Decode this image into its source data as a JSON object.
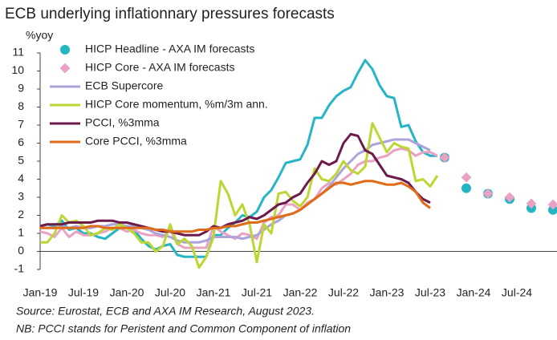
{
  "chart_data": {
    "type": "line",
    "title": "ECB underlying inflationnary pressures forecasts",
    "y_label": "%yoy",
    "notes": [
      "Source: Eurostat, ECB and AXA IM Research, August 2023.",
      "NB: PCCI stands for Peristent and Common Component of inflation"
    ],
    "categories": [
      "Jan-19",
      null,
      null,
      null,
      null,
      null,
      "Jul-19",
      null,
      null,
      null,
      null,
      null,
      "Jan-20",
      null,
      null,
      null,
      null,
      null,
      "Jul-20",
      null,
      null,
      null,
      null,
      null,
      "Jan-21",
      null,
      null,
      null,
      null,
      null,
      "Jul-21",
      null,
      null,
      null,
      null,
      null,
      "Jan-22",
      null,
      null,
      null,
      null,
      null,
      "Jul-22",
      null,
      null,
      null,
      null,
      null,
      "Jan-23",
      null,
      null,
      null,
      null,
      null,
      "Jul-23",
      null,
      null,
      null,
      null,
      null,
      "Jan-24",
      null,
      null,
      null,
      null,
      null,
      "Jul-24",
      null,
      null,
      null,
      null,
      null
    ],
    "ylim": [
      -1,
      11
    ],
    "yticks": [
      -1,
      0,
      1,
      2,
      3,
      4,
      5,
      6,
      7,
      8,
      9,
      10,
      11
    ],
    "grid": false,
    "series": [
      {
        "name": "HICP Headline - AXA IM forecasts",
        "color": "#26b5c5",
        "marker": "circle",
        "values": [
          1.4,
          1.5,
          1.4,
          1.7,
          1.2,
          1.3,
          1.0,
          1.0,
          0.8,
          0.7,
          1.0,
          1.3,
          1.4,
          1.2,
          0.7,
          0.3,
          0.1,
          0.3,
          0.4,
          -0.2,
          -0.3,
          -0.3,
          -0.3,
          -0.3,
          0.9,
          0.9,
          1.3,
          1.6,
          2.0,
          1.9,
          2.2,
          3.0,
          3.4,
          4.1,
          4.9,
          5.0,
          5.1,
          5.9,
          7.4,
          7.4,
          8.1,
          8.6,
          8.9,
          9.1,
          9.9,
          10.6,
          10.1,
          9.2,
          8.6,
          8.5,
          6.9,
          7.0,
          6.1,
          5.5,
          5.3,
          5.3,
          null,
          null,
          null,
          null,
          null,
          null,
          null,
          null,
          null,
          null,
          null,
          null,
          null,
          null,
          null,
          null
        ],
        "forecast": [
          null,
          null,
          null,
          null,
          null,
          null,
          null,
          null,
          null,
          null,
          null,
          null,
          null,
          null,
          null,
          null,
          null,
          null,
          null,
          null,
          null,
          null,
          null,
          null,
          null,
          null,
          null,
          null,
          null,
          null,
          null,
          null,
          null,
          null,
          null,
          null,
          null,
          null,
          null,
          null,
          null,
          null,
          null,
          null,
          null,
          null,
          null,
          null,
          null,
          null,
          null,
          null,
          null,
          null,
          null,
          null,
          5.2,
          null,
          null,
          3.5,
          null,
          null,
          3.2,
          null,
          null,
          2.9,
          null,
          null,
          2.4,
          null,
          null,
          2.3
        ]
      },
      {
        "name": "HICP Core - AXA IM forecasts",
        "color": "#e9a2c4",
        "marker": "diamond",
        "values": [
          1.1,
          1.0,
          0.8,
          1.3,
          0.8,
          1.1,
          0.9,
          0.9,
          1.0,
          1.1,
          1.3,
          1.3,
          1.1,
          1.2,
          1.0,
          0.9,
          0.9,
          0.8,
          1.2,
          0.4,
          0.2,
          0.2,
          0.2,
          0.2,
          1.4,
          1.1,
          0.9,
          0.7,
          1.0,
          0.9,
          0.7,
          1.6,
          1.9,
          2.0,
          2.6,
          2.6,
          2.3,
          2.7,
          2.9,
          3.5,
          3.8,
          3.7,
          4.0,
          4.3,
          4.8,
          5.0,
          5.0,
          5.2,
          5.3,
          5.6,
          5.7,
          5.6,
          5.3,
          5.5,
          5.5,
          5.3,
          null,
          null,
          null,
          null,
          null,
          null,
          null,
          null,
          null,
          null,
          null,
          null,
          null,
          null,
          null,
          null
        ],
        "forecast": [
          null,
          null,
          null,
          null,
          null,
          null,
          null,
          null,
          null,
          null,
          null,
          null,
          null,
          null,
          null,
          null,
          null,
          null,
          null,
          null,
          null,
          null,
          null,
          null,
          null,
          null,
          null,
          null,
          null,
          null,
          null,
          null,
          null,
          null,
          null,
          null,
          null,
          null,
          null,
          null,
          null,
          null,
          null,
          null,
          null,
          null,
          null,
          null,
          null,
          null,
          null,
          null,
          null,
          null,
          null,
          null,
          5.2,
          null,
          null,
          4.1,
          null,
          null,
          3.2,
          null,
          null,
          3.0,
          null,
          null,
          2.65,
          null,
          null,
          2.6
        ]
      },
      {
        "name": "ECB Supercore",
        "color": "#aaa4da",
        "values": [
          1.3,
          1.3,
          1.3,
          1.4,
          1.3,
          1.4,
          1.3,
          1.3,
          1.4,
          1.4,
          1.5,
          1.5,
          1.4,
          1.4,
          1.3,
          1.2,
          1.0,
          0.9,
          0.8,
          0.6,
          0.5,
          0.5,
          0.5,
          0.6,
          0.8,
          0.8,
          0.8,
          0.8,
          0.7,
          0.8,
          0.9,
          1.2,
          1.5,
          1.7,
          2.0,
          2.1,
          2.3,
          2.6,
          2.9,
          3.2,
          3.6,
          4.1,
          4.6,
          5.0,
          5.4,
          5.6,
          5.9,
          6.0,
          6.1,
          6.2,
          6.2,
          6.2,
          6.0,
          5.8,
          5.6,
          null,
          null,
          null,
          null,
          null,
          null,
          null,
          null,
          null,
          null,
          null,
          null,
          null,
          null,
          null,
          null,
          null
        ]
      },
      {
        "name": "HICP Core momentum, %m/3m ann.",
        "color": "#bdd633",
        "values": [
          0.5,
          0.5,
          1.0,
          2.0,
          1.6,
          1.7,
          1.4,
          0.9,
          1.0,
          1.3,
          1.2,
          1.5,
          1.3,
          1.0,
          0.5,
          0.5,
          0.0,
          0.3,
          1.5,
          0.4,
          0.7,
          0.3,
          -0.9,
          -0.3,
          0.8,
          3.9,
          3.2,
          2.0,
          2.6,
          1.5,
          -0.6,
          1.5,
          1.0,
          3.2,
          3.3,
          2.8,
          2.5,
          3.0,
          4.6,
          4.0,
          3.9,
          4.3,
          5.0,
          4.5,
          4.3,
          4.7,
          7.1,
          6.3,
          5.5,
          6.0,
          5.8,
          5.7,
          3.9,
          4.0,
          3.6,
          4.2,
          null,
          null,
          null,
          null,
          null,
          null,
          null,
          null,
          null,
          null,
          null,
          null,
          null,
          null,
          null,
          null
        ]
      },
      {
        "name": "PCCI, %3mma",
        "color": "#6d1b4a",
        "values": [
          1.4,
          1.5,
          1.5,
          1.5,
          1.6,
          1.6,
          1.6,
          1.6,
          1.7,
          1.7,
          1.7,
          1.6,
          1.6,
          1.5,
          1.4,
          1.3,
          1.2,
          1.1,
          1.1,
          1.0,
          0.9,
          0.9,
          0.9,
          1.1,
          1.4,
          1.3,
          1.5,
          1.6,
          1.7,
          1.9,
          1.8,
          2.0,
          2.3,
          2.6,
          2.7,
          3.0,
          3.2,
          3.8,
          4.3,
          5.0,
          4.8,
          5.0,
          6.0,
          6.5,
          6.4,
          5.6,
          5.4,
          4.8,
          4.2,
          4.1,
          4.0,
          3.8,
          3.3,
          2.9,
          2.7,
          null,
          null,
          null,
          null,
          null,
          null,
          null,
          null,
          null,
          null,
          null,
          null,
          null,
          null,
          null,
          null,
          null
        ]
      },
      {
        "name": "Core PCCI, %3mma",
        "color": "#e06c1a",
        "values": [
          1.3,
          1.3,
          1.3,
          1.3,
          1.3,
          1.3,
          1.3,
          1.4,
          1.4,
          1.3,
          1.3,
          1.3,
          1.3,
          1.3,
          1.3,
          1.3,
          1.2,
          1.2,
          1.1,
          1.1,
          1.1,
          1.1,
          1.2,
          1.2,
          1.3,
          1.3,
          1.4,
          1.4,
          1.5,
          1.6,
          1.6,
          1.7,
          1.8,
          1.9,
          2.0,
          2.1,
          2.3,
          2.6,
          2.9,
          3.2,
          3.5,
          3.8,
          3.8,
          3.7,
          3.8,
          3.9,
          3.9,
          3.8,
          3.7,
          3.7,
          3.8,
          3.6,
          3.3,
          2.7,
          2.4,
          null,
          null,
          null,
          null,
          null,
          null,
          null,
          null,
          null,
          null,
          null,
          null,
          null,
          null,
          null,
          null,
          null
        ]
      }
    ]
  }
}
